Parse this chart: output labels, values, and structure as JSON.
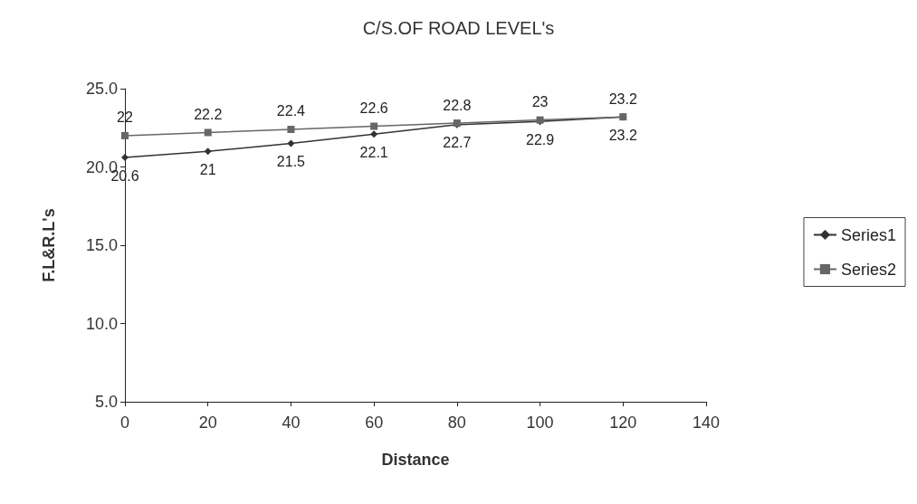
{
  "chart_data": {
    "type": "line",
    "title": "C/S.OF ROAD LEVEL's",
    "xlabel": "Distance",
    "ylabel": "F.L&R.L's",
    "x": [
      0,
      20,
      40,
      60,
      80,
      100,
      120
    ],
    "series": [
      {
        "name": "Series1",
        "color": "#333333",
        "marker": "diamond",
        "values": [
          20.6,
          21,
          21.5,
          22.1,
          22.7,
          22.9,
          23.2
        ]
      },
      {
        "name": "Series2",
        "color": "#666666",
        "marker": "square",
        "values": [
          22,
          22.2,
          22.4,
          22.6,
          22.8,
          23,
          23.2
        ]
      }
    ],
    "xlim": [
      0,
      140
    ],
    "xticks": [
      0,
      20,
      40,
      60,
      80,
      100,
      120,
      140
    ],
    "ylim": [
      5,
      25
    ],
    "yticks": [
      {
        "value": 5,
        "label": "5.0"
      },
      {
        "value": 10,
        "label": "10.0"
      },
      {
        "value": 15,
        "label": "15.0"
      },
      {
        "value": 20,
        "label": "20.0"
      },
      {
        "value": 25,
        "label": "25.0"
      }
    ],
    "data_labels": true,
    "legend": "right",
    "grid": false,
    "line_style": "solid"
  }
}
